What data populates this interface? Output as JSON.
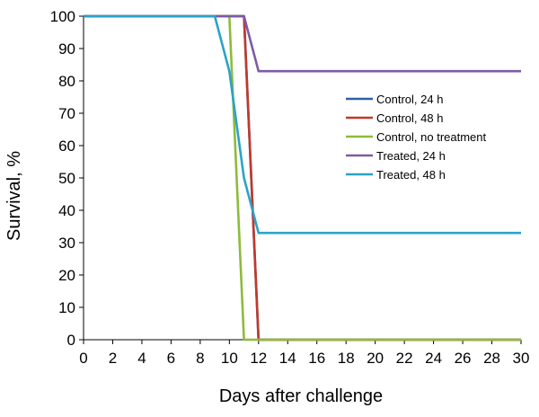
{
  "chart_data": {
    "type": "line",
    "xlabel": "Days after challenge",
    "ylabel": "Survival, %",
    "xlim": [
      0,
      30
    ],
    "ylim": [
      0,
      100
    ],
    "x_ticks": [
      "0",
      "2",
      "4",
      "6",
      "8",
      "10",
      "12",
      "14",
      "16",
      "18",
      "20",
      "22",
      "24",
      "26",
      "28",
      "30"
    ],
    "y_ticks": [
      "0",
      "10",
      "20",
      "30",
      "40",
      "50",
      "60",
      "70",
      "80",
      "90",
      "100"
    ],
    "grid": false,
    "legend_position": "right",
    "series": [
      {
        "name": "Control, 24 h",
        "color": "#2c62a3",
        "points": [
          [
            0,
            100
          ],
          [
            11,
            100
          ],
          [
            12,
            0
          ],
          [
            30,
            0
          ]
        ]
      },
      {
        "name": "Control, 48 h",
        "color": "#c0392b",
        "points": [
          [
            0,
            100
          ],
          [
            11,
            100
          ],
          [
            12,
            0
          ],
          [
            30,
            0
          ]
        ]
      },
      {
        "name": "Control, no treatment",
        "color": "#8dbb3a",
        "points": [
          [
            0,
            100
          ],
          [
            10,
            100
          ],
          [
            11,
            0
          ],
          [
            30,
            0
          ]
        ]
      },
      {
        "name": "Treated, 24 h",
        "color": "#7d5aa6",
        "points": [
          [
            0,
            100
          ],
          [
            11,
            100
          ],
          [
            12,
            83
          ],
          [
            30,
            83
          ]
        ]
      },
      {
        "name": "Treated, 48 h",
        "color": "#2aa3c8",
        "points": [
          [
            0,
            100
          ],
          [
            9,
            100
          ],
          [
            10,
            83
          ],
          [
            11,
            50
          ],
          [
            12,
            33
          ],
          [
            30,
            33
          ]
        ]
      }
    ]
  }
}
